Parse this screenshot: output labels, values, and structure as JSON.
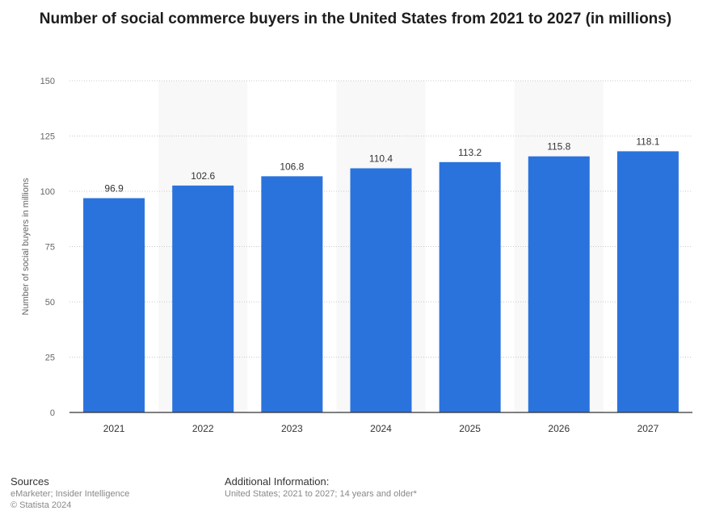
{
  "chart_data": {
    "type": "bar",
    "title": "Number of social commerce buyers in the United States from 2021 to 2027 (in millions)",
    "xlabel": "",
    "ylabel": "Number of social buyers in millions",
    "categories": [
      "2021",
      "2022",
      "2023",
      "2024",
      "2025",
      "2026",
      "2027"
    ],
    "values": [
      96.9,
      102.6,
      106.8,
      110.4,
      113.2,
      115.8,
      118.1
    ],
    "value_labels": [
      "96.9",
      "102.6",
      "106.8",
      "110.4",
      "113.2",
      "115.8",
      "118.1"
    ],
    "ylim": [
      0,
      150
    ],
    "yticks": [
      0,
      25,
      50,
      75,
      100,
      125,
      150
    ],
    "grid": true,
    "bar_color": "#2a73dc"
  },
  "footer": {
    "sources_heading": "Sources",
    "sources_text": "eMarketer; Insider Intelligence",
    "copyright": "© Statista 2024",
    "additional_heading": "Additional Information:",
    "additional_text": "United States; 2021 to 2027; 14 years and older*"
  }
}
